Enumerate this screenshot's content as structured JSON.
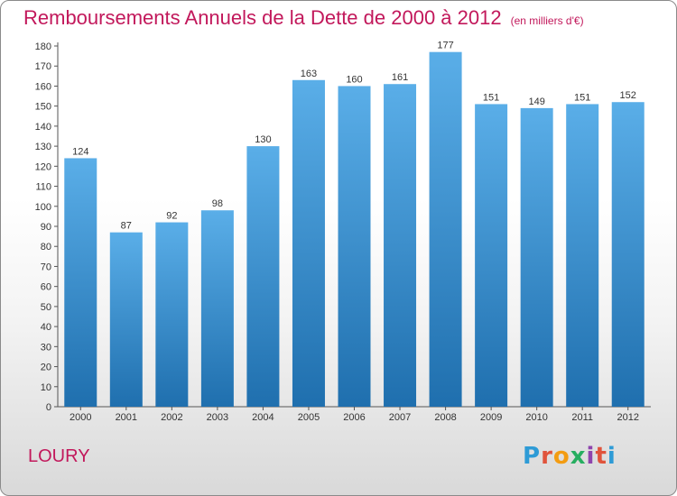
{
  "header": {
    "title": "Remboursements Annuels de la Dette de 2000 à 2012",
    "unit": "(en milliers d'€)"
  },
  "commune": "LOURY",
  "logo": {
    "text": "Proxiti",
    "letters": [
      "P",
      "r",
      "o",
      "x",
      "i",
      "t",
      "i"
    ]
  },
  "colors": {
    "title": "#c2185b",
    "bar_top": "#5aaee8",
    "bar_bottom": "#1f6fae"
  },
  "chart_data": {
    "type": "bar",
    "title": "Remboursements Annuels de la Dette de 2000 à 2012",
    "subtitle": "(en milliers d'€)",
    "xlabel": "",
    "ylabel": "",
    "categories": [
      "2000",
      "2001",
      "2002",
      "2003",
      "2004",
      "2005",
      "2006",
      "2007",
      "2008",
      "2009",
      "2010",
      "2011",
      "2012"
    ],
    "values": [
      124,
      87,
      92,
      98,
      130,
      163,
      160,
      161,
      177,
      151,
      149,
      151,
      152
    ],
    "ylim": [
      0,
      180
    ],
    "yticks": [
      0,
      10,
      20,
      30,
      40,
      50,
      60,
      70,
      80,
      90,
      100,
      110,
      120,
      130,
      140,
      150,
      160,
      170,
      180
    ],
    "grid": false,
    "legend": "none"
  }
}
